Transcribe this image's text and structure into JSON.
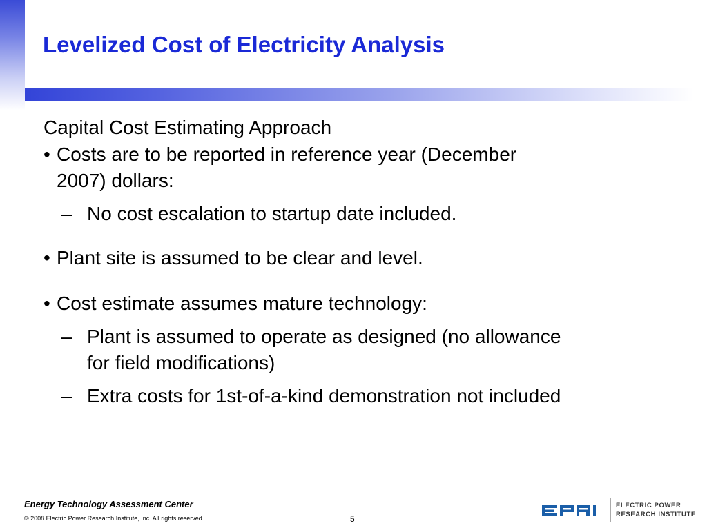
{
  "slide": {
    "title": "Levelized Cost of Electricity Analysis",
    "subheading": "Capital Cost Estimating Approach",
    "bullets": [
      {
        "mark": "•",
        "text": "Costs are to be reported in reference year (December 2007) dollars:",
        "subs": [
          {
            "mark": "–",
            "text": "No cost escalation to startup date included."
          }
        ]
      },
      {
        "mark": "•",
        "text": "Plant site is assumed to be clear and level.",
        "subs": []
      },
      {
        "mark": "•",
        "text": "Cost estimate assumes mature technology:",
        "subs": [
          {
            "mark": "–",
            "text": "Plant is assumed to operate as designed (no allowance for field modifications)"
          },
          {
            "mark": "–",
            "text": "Extra costs for 1st-of-a-kind demonstration not included"
          }
        ]
      }
    ]
  },
  "footer": {
    "center_name": "Energy Technology Assessment Center",
    "copyright": "© 2008 Electric Power Research Institute, Inc. All rights reserved.",
    "page_number": "5",
    "logo_wordmark": "EPRI",
    "logo_line1": "ELECTRIC POWER",
    "logo_line2": "RESEARCH INSTITUTE"
  },
  "colors": {
    "title": "#1a29d6",
    "accent_bar": "#3344d8"
  }
}
